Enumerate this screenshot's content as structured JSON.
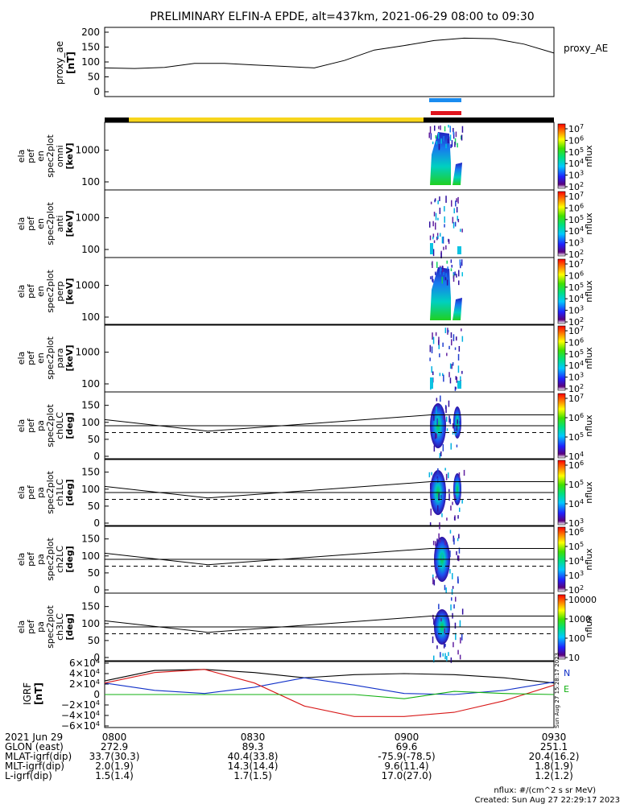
{
  "title": "PRELIMINARY ELFIN-A EPDE, alt=437km, 2021-06-29 08:00 to 09:30",
  "colors": {
    "accent_blue": "#1a8cf0",
    "accent_red": "#e0141e",
    "bar_yellow": "#f7d51c",
    "bar_black": "#000000",
    "curve_black": "#000000",
    "curve_blue": "#1030c8",
    "curve_red": "#d81818",
    "curve_green": "#10b010"
  },
  "chart_data": [
    {
      "type": "line",
      "ylabel": "proxy_ae [nT]",
      "yticks": [
        "200",
        "150",
        "100",
        "50",
        "0"
      ],
      "ylim": [
        0,
        200
      ],
      "series": [
        {
          "name": "proxy_AE",
          "x": [
            "08:00",
            "08:06",
            "08:12",
            "08:18",
            "08:24",
            "08:30",
            "08:36",
            "08:42",
            "08:48",
            "08:54",
            "09:00",
            "09:06",
            "09:12",
            "09:18",
            "09:24",
            "09:30"
          ],
          "values": [
            80,
            78,
            82,
            95,
            95,
            90,
            85,
            80,
            105,
            140,
            155,
            172,
            180,
            178,
            160,
            130
          ]
        }
      ]
    },
    {
      "type": "heatmap",
      "ylabel": "ela pef en spec2plot omni [keV]",
      "yticks": [
        "1000",
        "100"
      ],
      "yscale": "log",
      "colorbar_label": "nflux",
      "colorbar_ticks": [
        "10^7",
        "10^6",
        "10^5",
        "10^4",
        "10^3",
        "10^2"
      ]
    },
    {
      "type": "heatmap",
      "ylabel": "ela pef en spec2plot anti [keV]",
      "yticks": [
        "1000",
        "100"
      ],
      "yscale": "log",
      "colorbar_label": "nflux",
      "colorbar_ticks": [
        "10^7",
        "10^6",
        "10^5",
        "10^4",
        "10^3",
        "10^2"
      ]
    },
    {
      "type": "heatmap",
      "ylabel": "ela pef en spec2plot perp [keV]",
      "yticks": [
        "1000",
        "100"
      ],
      "yscale": "log",
      "colorbar_label": "nflux",
      "colorbar_ticks": [
        "10^7",
        "10^6",
        "10^5",
        "10^4",
        "10^3",
        "10^2"
      ]
    },
    {
      "type": "heatmap",
      "ylabel": "ela pef en spec2plot para [keV]",
      "yticks": [
        "1000",
        "100"
      ],
      "yscale": "log",
      "colorbar_label": "nflux",
      "colorbar_ticks": [
        "10^7",
        "10^6",
        "10^5",
        "10^4",
        "10^3",
        "10^2"
      ]
    },
    {
      "type": "heatmap",
      "ylabel": "ela pef pa spec2plot ch0LC [deg]",
      "yticks": [
        "150",
        "100",
        "50",
        "0"
      ],
      "ylim": [
        0,
        180
      ],
      "colorbar_label": "nflux",
      "colorbar_ticks": [
        "10^7",
        "10^6",
        "10^5",
        "10^4"
      ]
    },
    {
      "type": "heatmap",
      "ylabel": "ela pef pa spec2plot ch1LC [deg]",
      "yticks": [
        "150",
        "100",
        "50",
        "0"
      ],
      "ylim": [
        0,
        180
      ],
      "colorbar_label": "nflux",
      "colorbar_ticks": [
        "10^6",
        "10^5",
        "10^4",
        "10^3"
      ]
    },
    {
      "type": "heatmap",
      "ylabel": "ela pef pa spec2plot ch2LC [deg]",
      "yticks": [
        "150",
        "100",
        "50",
        "0"
      ],
      "ylim": [
        0,
        180
      ],
      "colorbar_label": "nflux",
      "colorbar_ticks": [
        "10^6",
        "10^5",
        "10^4",
        "10^3",
        "10^2"
      ]
    },
    {
      "type": "heatmap",
      "ylabel": "ela pef pa spec2plot ch3LC [deg]",
      "yticks": [
        "150",
        "100",
        "50",
        "0"
      ],
      "ylim": [
        0,
        180
      ],
      "colorbar_label": "nflux",
      "colorbar_ticks": [
        "10000",
        "1000",
        "100",
        "10"
      ]
    },
    {
      "type": "line",
      "ylabel": "IGRF [nT]",
      "yticks": [
        "6×10^4",
        "4×10^4",
        "2×10^4",
        "0",
        "−2×10^4",
        "−4×10^4",
        "−6×10^4"
      ],
      "ylim": [
        -60000,
        60000
      ],
      "legend": [
        "N",
        "E"
      ],
      "series": [
        {
          "name": "N",
          "values": [
            26000,
            46000,
            48000,
            42000,
            32000,
            38000,
            40000,
            38000,
            32000,
            22000
          ]
        },
        {
          "name": "",
          "values": [
            22000,
            8000,
            2000,
            14000,
            32000,
            18000,
            2000,
            0,
            8000,
            24000
          ]
        },
        {
          "name": "",
          "values": [
            22000,
            42000,
            48000,
            22000,
            -22000,
            -42000,
            -42000,
            -34000,
            -12000,
            18000
          ]
        },
        {
          "name": "E",
          "values": [
            0,
            0,
            0,
            0,
            0,
            0,
            -8000,
            6000,
            2000,
            0
          ]
        }
      ]
    }
  ],
  "footer": {
    "rows": [
      {
        "label": "2021 Jun 29",
        "values": [
          "0800",
          "0830",
          "0900",
          "0930"
        ]
      },
      {
        "label": "GLON (east)",
        "values": [
          "272.9",
          "89.3",
          "69.6",
          "251.1"
        ]
      },
      {
        "label": "MLAT-igrf(dip)",
        "values": [
          "33.7(30.3)",
          "40.4(33.8)",
          "-75.9(-78.5)",
          "20.4(16.2)"
        ]
      },
      {
        "label": "MLT-igrf(dip)",
        "values": [
          "2.0(1.9)",
          "14.3(14.4)",
          "9.6(11.4)",
          "1.8(1.9)"
        ]
      },
      {
        "label": "L-igrf(dip)",
        "values": [
          "1.5(1.4)",
          "1.7(1.5)",
          "17.0(27.0)",
          "1.2(1.2)"
        ]
      }
    ],
    "units_note": "nflux: #/(cm^2 s sr MeV)",
    "created": "Created: Sun Aug 27 22:29:17 2023",
    "side_stamp": "Sun Aug 27 15:28:17 2023"
  }
}
